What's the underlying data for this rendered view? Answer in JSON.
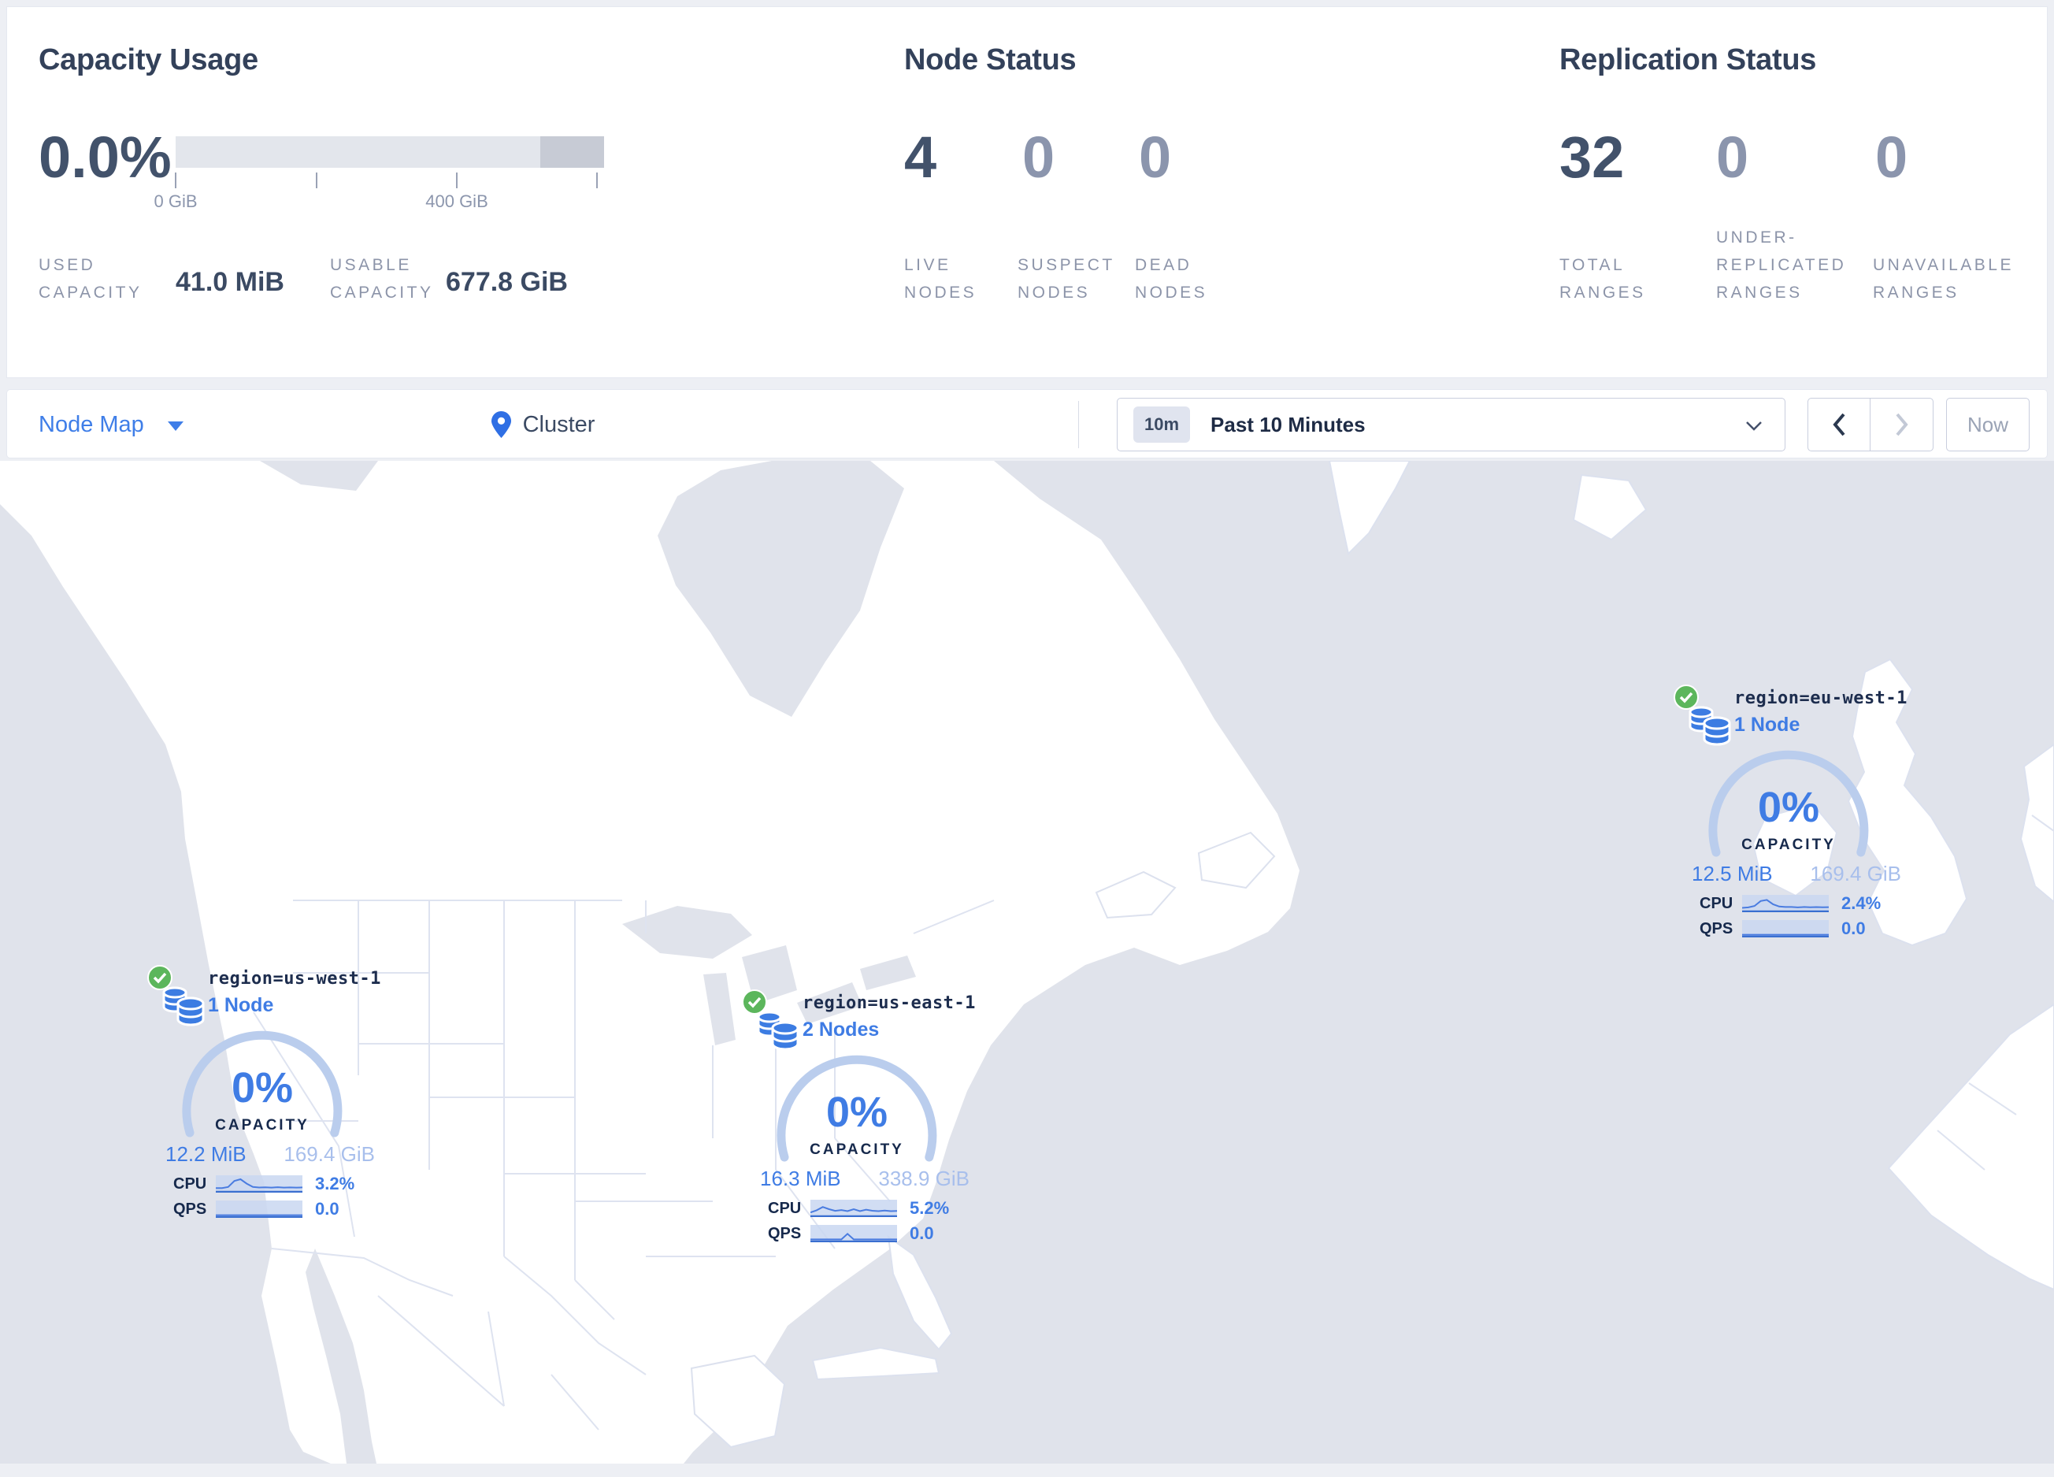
{
  "colors": {
    "accent_blue": "#3f7ce4",
    "light_blue": "#a8bfec",
    "arc_blue": "#bacded",
    "dark_navy": "#16294c",
    "title_slate": "#33415a",
    "muted_label": "#8c94a9",
    "green_check": "#5cb65c",
    "ocean_gray": "#e0e3eb",
    "page_bg": "#edeff4"
  },
  "stats": {
    "capacity": {
      "title": "Capacity Usage",
      "percent": "0.0%",
      "tick_start": "0 GiB",
      "tick_mid": "400 GiB",
      "used_label": "USED CAPACITY",
      "used_value": "41.0 MiB",
      "usable_label": "USABLE CAPACITY",
      "usable_value": "677.8 GiB"
    },
    "nodes": {
      "title": "Node Status",
      "live": {
        "value": "4",
        "label": "LIVE NODES"
      },
      "suspect": {
        "value": "0",
        "label": "SUSPECT NODES"
      },
      "dead": {
        "value": "0",
        "label": "DEAD NODES"
      }
    },
    "replication": {
      "title": "Replication Status",
      "total": {
        "value": "32",
        "label": "TOTAL RANGES"
      },
      "under": {
        "value": "0",
        "label": "UNDER-REPLICATED RANGES"
      },
      "unavailable": {
        "value": "0",
        "label": "UNAVAILABLE RANGES"
      }
    }
  },
  "toolbar": {
    "view_selector": "Node Map",
    "breadcrumb": "Cluster",
    "time_badge": "10m",
    "time_range": "Past 10 Minutes",
    "now_button": "Now"
  },
  "regions": [
    {
      "name": "region=us-west-1",
      "nodes": "1 Node",
      "percent": "0%",
      "capacity_label": "CAPACITY",
      "used": "12.2 MiB",
      "total": "169.4 GiB",
      "cpu_label": "CPU",
      "cpu_value": "3.2%",
      "qps_label": "QPS",
      "qps_value": "0.0",
      "cpu_spark": [
        2,
        2,
        3,
        8.5,
        10,
        6,
        3,
        2.5,
        2.7,
        2.4,
        2.8,
        2.4,
        2.6,
        2.4,
        2.6
      ],
      "qps_spark": [
        0.3,
        0.3,
        0.3,
        0.3,
        0.3,
        0.3,
        0.3,
        0.3,
        0.3,
        0.3,
        0.3,
        0.3,
        0.3,
        0.3,
        0.3
      ]
    },
    {
      "name": "region=us-east-1",
      "nodes": "2 Nodes",
      "percent": "0%",
      "capacity_label": "CAPACITY",
      "used": "16.3 MiB",
      "total": "338.9 GiB",
      "cpu_label": "CPU",
      "cpu_value": "5.2%",
      "qps_label": "QPS",
      "qps_value": "0.0",
      "cpu_spark": [
        2,
        4,
        7,
        5,
        3.5,
        4.2,
        3.2,
        5,
        3.2,
        4.6,
        3.6,
        3.2,
        3.8,
        3.2,
        3.4
      ],
      "qps_spark": [
        0.4,
        0.4,
        0.4,
        0.4,
        0.4,
        0.4,
        5.5,
        0.4,
        0.4,
        0.4,
        0.4,
        0.4,
        0.4,
        0.4,
        0.4
      ]
    },
    {
      "name": "region=eu-west-1",
      "nodes": "1 Node",
      "percent": "0%",
      "capacity_label": "CAPACITY",
      "used": "12.5 MiB",
      "total": "169.4 GiB",
      "cpu_label": "CPU",
      "cpu_value": "2.4%",
      "qps_label": "QPS",
      "qps_value": "0.0",
      "cpu_spark": [
        1.8,
        2.2,
        3.5,
        8,
        9,
        5,
        3,
        2.6,
        2.6,
        2.2,
        2.6,
        2.3,
        2.5,
        2.3,
        2.4
      ],
      "qps_spark": [
        0.3,
        0.3,
        0.3,
        0.3,
        0.3,
        0.3,
        0.3,
        0.3,
        0.3,
        0.3,
        0.3,
        0.3,
        0.3,
        0.3,
        0.3
      ]
    }
  ]
}
